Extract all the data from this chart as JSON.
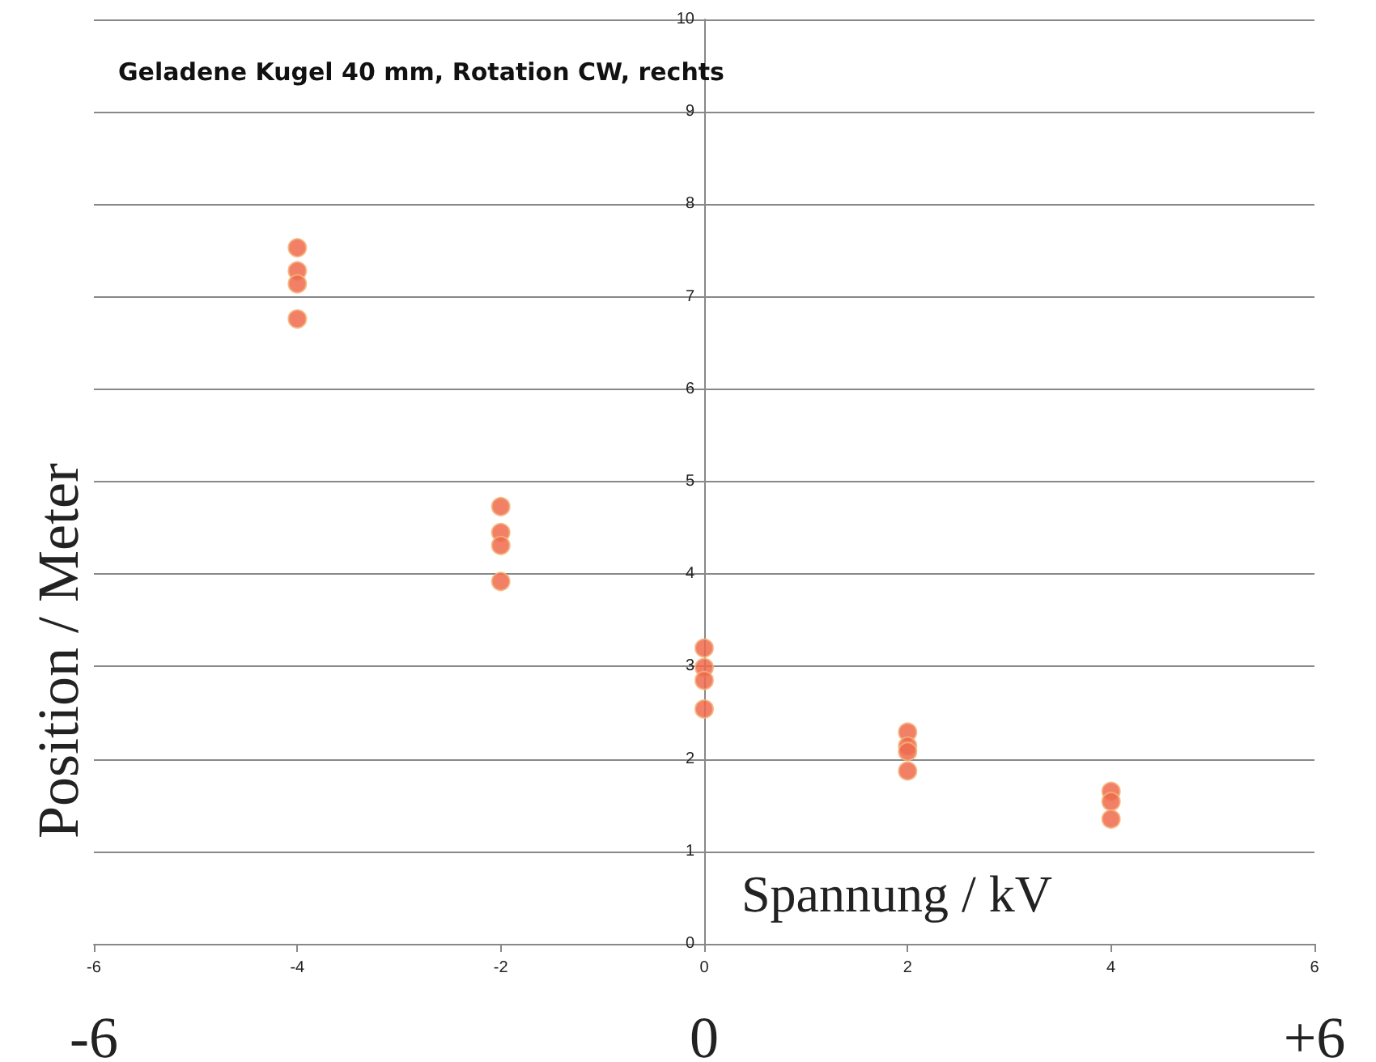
{
  "chart_data": {
    "type": "scatter",
    "title": "Geladene Kugel 40 mm, Rotation CW, rechts",
    "xlabel": "Spannung / kV",
    "ylabel": "Position / Meter",
    "x": [
      -4,
      -4,
      -4,
      -4,
      -2,
      -2,
      -2,
      -2,
      0,
      0,
      0,
      0,
      2,
      2,
      2,
      2,
      4,
      4,
      4
    ],
    "series": [
      {
        "color": "#ef6a4c",
        "values": [
          7.53,
          7.28,
          7.14,
          6.76,
          4.73,
          4.45,
          4.31,
          3.92,
          3.2,
          2.99,
          2.85,
          2.54,
          2.29,
          2.14,
          2.08,
          1.87,
          1.65,
          1.54,
          1.35
        ]
      }
    ],
    "xlim": [
      -6,
      6
    ],
    "xticks": [
      -6,
      -4,
      -2,
      0,
      2,
      4,
      6
    ],
    "ylim": [
      0,
      10
    ],
    "yticks": [
      0,
      1,
      2,
      3,
      4,
      5,
      6,
      7,
      8,
      9,
      10
    ],
    "grid": "y",
    "marker": "circle",
    "annotations": [
      "-6",
      "0",
      "+6"
    ]
  }
}
